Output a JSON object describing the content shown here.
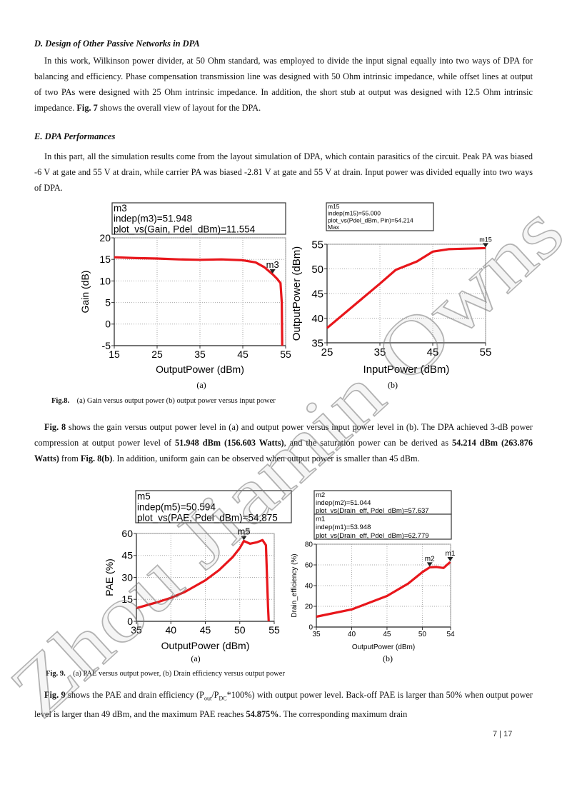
{
  "headings": [
    "D. Design of Other Passive Networks in DPA",
    "E. DPA Performances"
  ],
  "paragraphs": [
    [
      "In this work, Wilkinson power divider, at 50 Ohm standard, was employed to divide the input signal equally into two ways of DPA for balancing and efficiency. Phase compensation transmission line was designed with 50 Ohm intrinsic impedance, while offset lines at output of two PAs were designed with 25 Ohm intrinsic impedance. In addition, the short stub at output was designed with 12.5 Ohm intrinsic impedance. ",
      {
        "text": "Fig. 7",
        "bold": true
      },
      " shows the overall view of layout for the DPA."
    ],
    [
      "In this part, all the simulation results come from the layout simulation of DPA, which contain parasitics of the circuit. Peak PA was biased -6 V at gate and 55 V at drain, while carrier PA was biased -2.81 V at gate and 55 V at drain. Input power was divided equally into two ways of DPA."
    ],
    [
      {
        "text": "Fig. 8",
        "bold": true
      },
      " shows the gain versus output power level in (a) and output power versus input power level in (b). The DPA achieved 3-dB power compression at output power level of ",
      {
        "text": "51.948 dBm (156.603 Watts)",
        "bold": true
      },
      ", and the saturation power can be derived as ",
      {
        "text": "54.214 dBm (263.876 Watts)",
        "bold": true
      },
      " from ",
      {
        "text": "Fig. 8(b)",
        "bold": true
      },
      ". In addition, uniform gain can be observed when output power is smaller than 45 dBm."
    ],
    [
      {
        "text": "Fig. 9",
        "bold": true
      },
      " shows the PAE and drain efficiency (P",
      {
        "text": "out",
        "sub": true
      },
      "/P",
      {
        "text": "DC",
        "sub": true
      },
      "*100%) with output power level. Back-off PAE is larger than 50% when output power level is larger than 49 dBm, and the maximum PAE reaches ",
      {
        "text": "54.875%",
        "bold": true
      },
      ". The corresponding maximum drain"
    ]
  ],
  "figures": [
    {
      "caption": {
        "label": "Fig.8.",
        "text": "(a) Gain versus output power (b) output power versus input power"
      },
      "panels": [
        {
          "type": "line",
          "panel_label": "(a)",
          "x_label": "OutputPower (dBm)",
          "y_label": "Gain (dB)",
          "xlim": [
            15,
            55
          ],
          "xticks": [
            15,
            25,
            35,
            45,
            55
          ],
          "ylim": [
            -5,
            20
          ],
          "yticks": [
            -5,
            0,
            5,
            10,
            15,
            20
          ],
          "grid": true,
          "color": "#e8161b",
          "x": [
            15,
            20,
            25,
            30,
            35,
            40,
            45,
            48,
            50,
            51.948,
            53,
            53.8,
            54.1,
            54.2
          ],
          "y": [
            15.5,
            15.3,
            15.2,
            15,
            14.9,
            15,
            14.8,
            14.3,
            13.2,
            11.554,
            10.5,
            9.5,
            5,
            -5
          ],
          "markers": [
            {
              "name": "m3",
              "x": 51.948,
              "y": 11.554
            }
          ],
          "readouts": [
            [
              "m3",
              "indep(m3)=51.948",
              "plot_vs(Gain, Pdel_dBm)=11.554"
            ]
          ]
        },
        {
          "type": "line",
          "panel_label": "(b)",
          "x_label": "InputPower (dBm)",
          "y_label": "OutputPower (dBm)",
          "xlim": [
            25,
            55
          ],
          "xticks": [
            25,
            35,
            45,
            55
          ],
          "ylim": [
            35,
            55
          ],
          "yticks": [
            35,
            40,
            45,
            50,
            55
          ],
          "grid": true,
          "color": "#e8161b",
          "x": [
            25,
            30,
            35,
            38,
            42,
            45,
            48,
            55
          ],
          "y": [
            38,
            42.5,
            47,
            49.8,
            51.5,
            53.5,
            54,
            54.214
          ],
          "markers": [
            {
              "name": "m15",
              "x": 55,
              "y": 54.214
            }
          ],
          "readouts": [
            [
              "m15",
              "indep(m15)=55.000",
              "plot_vs(Pdel_dBm, Pin)=54.214",
              "Max"
            ]
          ]
        }
      ]
    },
    {
      "caption": {
        "label": "Fig. 9.",
        "text": "(a) PAE versus output power, (b) Drain efficiency versus output power"
      },
      "panels": [
        {
          "type": "line",
          "panel_label": "(a)",
          "x_label": "OutputPower (dBm)",
          "y_label": "PAE (%)",
          "xlim": [
            35,
            55
          ],
          "xticks": [
            35,
            40,
            45,
            50,
            55
          ],
          "ylim": [
            0,
            60
          ],
          "yticks": [
            0,
            15,
            30,
            45,
            60
          ],
          "grid": true,
          "color": "#e8161b",
          "x": [
            35,
            38,
            40,
            42,
            45,
            47,
            49,
            50,
            50.594,
            51.5,
            52.5,
            53.3,
            53.8,
            54.1,
            54.2
          ],
          "y": [
            9,
            13,
            16,
            20,
            28,
            35,
            44,
            50,
            54.875,
            53,
            54,
            55.5,
            52,
            10,
            0
          ],
          "markers": [
            {
              "name": "m5",
              "x": 50.594,
              "y": 54.875
            }
          ],
          "readouts": [
            [
              "m5",
              "indep(m5)=50.594",
              "plot_vs(PAE, Pdel_dBm)=54.875"
            ]
          ]
        },
        {
          "type": "line",
          "panel_label": "(b)",
          "x_label": "OutputPower (dBm)",
          "y_label": "Drain_efficiency (%)",
          "xlim": [
            35,
            54
          ],
          "xticks": [
            35,
            40,
            45,
            50,
            54
          ],
          "ylim": [
            0,
            80
          ],
          "yticks": [
            0,
            20,
            40,
            60,
            80
          ],
          "grid": true,
          "color": "#e8161b",
          "x": [
            35,
            40,
            45,
            48,
            50,
            51.044,
            52,
            53,
            53.948
          ],
          "y": [
            10,
            17,
            30,
            42,
            53,
            57.637,
            58,
            57,
            62.779
          ],
          "markers": [
            {
              "name": "m2",
              "x": 51.044,
              "y": 57.637
            },
            {
              "name": "m1",
              "x": 53.948,
              "y": 62.779
            }
          ],
          "readouts": [
            [
              "m2",
              "indep(m2)=51.044",
              "plot_vs(Drain_eff, Pdel_dBm)=57.637"
            ],
            [
              "m1",
              "indep(m1)=53.948",
              "plot_vs(Drain_eff, Pdel_dBm)=62.779"
            ]
          ]
        }
      ]
    }
  ],
  "page_number": "7 | 17",
  "watermark": "Zhou Jiamin Owns"
}
